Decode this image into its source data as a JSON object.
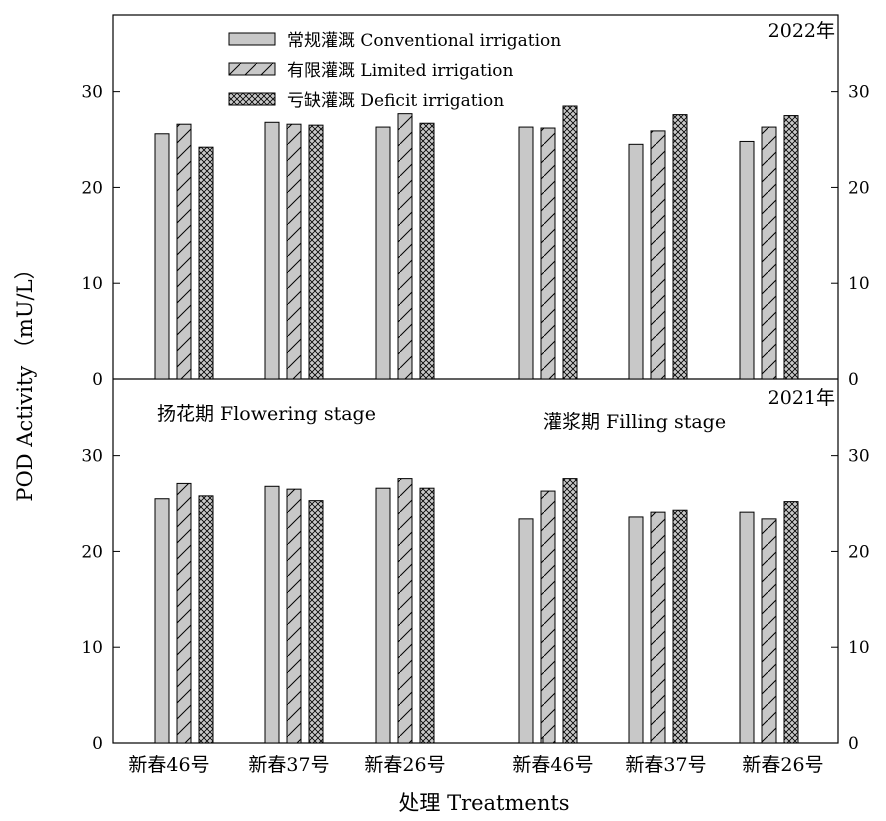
{
  "chart_data": {
    "type": "bar",
    "ylabel": "POD Activity （mU/L）",
    "xlabel": "处理 Treatments",
    "ylim": [
      0,
      38
    ],
    "yticks": [
      "0",
      "10",
      "20",
      "30"
    ],
    "categories": [
      "新春46号",
      "新春37号",
      "新春26号",
      "新春46号",
      "新春37号",
      "新春26号"
    ],
    "stage_labels": [
      "扬花期  Flowering stage",
      "灌浆期  Filling stage"
    ],
    "legend": [
      {
        "name": "常规灌溉 Conventional irrigation",
        "pattern": "solid"
      },
      {
        "name": "有限灌溉 Limited irrigation",
        "pattern": "diag"
      },
      {
        "name": "亏缺灌溉 Deficit irrigation",
        "pattern": "cross"
      }
    ],
    "panels": [
      {
        "year": "2022年",
        "series": [
          {
            "values": [
              25.6,
              26.8,
              26.3,
              26.3,
              24.5,
              24.8
            ]
          },
          {
            "values": [
              26.6,
              26.6,
              27.7,
              26.2,
              25.9,
              26.3
            ]
          },
          {
            "values": [
              24.2,
              26.5,
              26.7,
              28.5,
              27.6,
              27.5
            ]
          }
        ]
      },
      {
        "year": "2021年",
        "series": [
          {
            "values": [
              25.5,
              26.8,
              26.6,
              23.4,
              23.6,
              24.1
            ]
          },
          {
            "values": [
              27.1,
              26.5,
              27.6,
              26.3,
              24.1,
              23.4
            ]
          },
          {
            "values": [
              25.8,
              25.3,
              26.6,
              27.6,
              24.3,
              25.2
            ]
          }
        ]
      }
    ],
    "colors": {
      "bar_fill": "#c8c8c8",
      "stroke": "#000000"
    }
  }
}
